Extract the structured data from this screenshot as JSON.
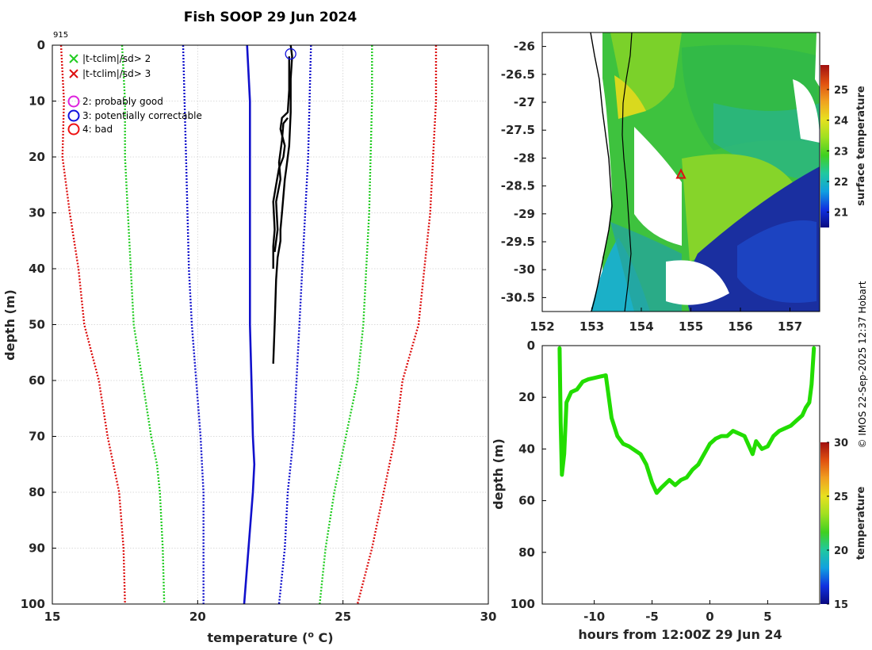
{
  "credit": "© IMOS 22-Sep-2025 12:37 Hobart",
  "colors": {
    "sd2": "#22cc22",
    "sd3": "#dd1111",
    "mean": "#1111cc",
    "good": "#dd22dd",
    "correctable": "#1111dd",
    "bad": "#ee1111",
    "profile": "#000000",
    "track": "#22dd00",
    "marker": "#dd1111"
  },
  "chart_data": [
    {
      "id": "profile",
      "type": "line",
      "title": "Fish SOOP 29 Jun 2024",
      "annotation": "915",
      "xlabel": "temperature (",
      "xlabel_sup": "o",
      "xlabel_end": " C)",
      "ylabel": "depth (m)",
      "xlim": [
        15,
        30
      ],
      "ylim": [
        0,
        100
      ],
      "y_reversed": true,
      "xticks": [
        "15",
        "20",
        "25",
        "30"
      ],
      "yticks": [
        "0",
        "10",
        "20",
        "30",
        "40",
        "50",
        "60",
        "70",
        "80",
        "90",
        "100"
      ],
      "grid": true,
      "legend_position": "top-left",
      "legend": [
        {
          "symbol": "x",
          "color_key": "sd2",
          "label": "|t-tclim|/sd> 2"
        },
        {
          "symbol": "x",
          "color_key": "sd3",
          "label": "|t-tclim|/sd> 3"
        },
        {
          "symbol": "o",
          "color_key": "good",
          "label": "2: probably good"
        },
        {
          "symbol": "o",
          "color_key": "correctable",
          "label": "3: potentially correctable"
        },
        {
          "symbol": "o",
          "color_key": "bad",
          "label": "4: bad"
        }
      ],
      "climatology": {
        "depth": [
          0,
          10,
          20,
          30,
          40,
          50,
          60,
          70,
          75,
          80,
          90,
          100
        ],
        "mean": [
          21.7,
          21.8,
          21.8,
          21.8,
          21.8,
          21.8,
          21.85,
          21.9,
          21.95,
          21.9,
          21.75,
          21.6
        ],
        "sd2_lo": [
          17.4,
          17.5,
          17.5,
          17.6,
          17.7,
          17.8,
          18.1,
          18.4,
          18.6,
          18.7,
          18.8,
          18.85
        ],
        "sd2_hi": [
          26.0,
          26.0,
          25.95,
          25.9,
          25.8,
          25.7,
          25.5,
          25.1,
          24.9,
          24.7,
          24.4,
          24.2
        ],
        "sd3_lo": [
          15.3,
          15.4,
          15.35,
          15.6,
          15.9,
          16.1,
          16.6,
          16.9,
          17.1,
          17.3,
          17.45,
          17.5
        ],
        "sd3_hi": [
          28.2,
          28.2,
          28.1,
          28.0,
          27.8,
          27.6,
          27.05,
          26.8,
          26.6,
          26.4,
          26.0,
          25.5
        ],
        "sd1_lo": [
          19.5,
          19.55,
          19.6,
          19.65,
          19.7,
          19.8,
          19.95,
          20.1,
          20.15,
          20.2,
          20.2,
          20.2
        ],
        "sd1_hi": [
          23.9,
          23.85,
          23.8,
          23.7,
          23.6,
          23.5,
          23.4,
          23.3,
          23.2,
          23.1,
          23.0,
          22.8
        ]
      },
      "profiles": [
        {
          "t": [
            23.2,
            23.25,
            23.2,
            23.2,
            23.15,
            23.05,
            23.0,
            22.95,
            22.9,
            22.85,
            22.85,
            22.75,
            22.7,
            22.65,
            22.6
          ],
          "d": [
            0,
            2,
            6,
            12,
            18,
            22,
            24,
            27,
            30,
            33,
            35,
            38,
            42,
            50,
            57
          ]
        },
        {
          "t": [
            23.15,
            23.15,
            23.1,
            22.9,
            22.85,
            23.0,
            22.95,
            22.8,
            22.7,
            22.6,
            22.65,
            22.6,
            22.6
          ],
          "d": [
            2,
            8,
            12,
            13,
            15,
            18,
            20,
            22,
            25,
            28,
            33,
            36,
            40
          ]
        },
        {
          "t": [
            23.1,
            22.95,
            22.9,
            22.8,
            22.85,
            22.7,
            22.75,
            22.65
          ],
          "d": [
            13,
            14,
            17,
            21,
            24,
            28,
            33,
            37
          ]
        }
      ],
      "flag_marker": {
        "t": 23.2,
        "d": 1,
        "color_key": "correctable"
      }
    },
    {
      "id": "map",
      "type": "heatmap",
      "xlim": [
        152,
        157.6
      ],
      "ylim": [
        -30.75,
        -25.75
      ],
      "xticks": [
        "152",
        "153",
        "154",
        "155",
        "156",
        "157"
      ],
      "yticks": [
        "-26",
        "-26.5",
        "-27",
        "-27.5",
        "-28",
        "-28.5",
        "-29",
        "-29.5",
        "-30",
        "-30.5"
      ],
      "colorbar": {
        "label": "surface temperature",
        "min": 20.5,
        "max": 25.8,
        "ticks": [
          "21",
          "22",
          "23",
          "24",
          "25"
        ]
      },
      "marker": {
        "lon": 154.8,
        "lat": -28.3,
        "symbol": "triangle"
      }
    },
    {
      "id": "track",
      "type": "scatter",
      "xlabel": "hours from 12:00Z 29 Jun 24",
      "ylabel": "depth (m)",
      "xlim": [
        -14.5,
        9.5
      ],
      "ylim": [
        0,
        100
      ],
      "y_reversed": true,
      "xticks": [
        "-10",
        "-5",
        "0",
        "5"
      ],
      "yticks": [
        "0",
        "20",
        "40",
        "60",
        "80",
        "100"
      ],
      "colorbar": {
        "label": "temperature",
        "min": 15,
        "max": 30,
        "ticks": [
          "15",
          "20",
          "25",
          "30"
        ]
      },
      "x": [
        -13.0,
        -12.9,
        -12.8,
        -12.6,
        -12.4,
        -12.0,
        -11.5,
        -11.0,
        -10.5,
        -10.0,
        -9.5,
        -9.0,
        -8.8,
        -8.5,
        -8.0,
        -7.5,
        -7.0,
        -6.0,
        -5.5,
        -5.0,
        -4.6,
        -4.2,
        -3.5,
        -3.0,
        -2.5,
        -2.0,
        -1.5,
        -1.0,
        -0.5,
        0.0,
        0.5,
        1.0,
        1.5,
        2.0,
        2.5,
        3.0,
        3.5,
        3.7,
        4.0,
        4.5,
        5.0,
        5.5,
        6.0,
        6.5,
        7.0,
        7.5,
        8.0,
        8.3,
        8.6,
        8.8,
        9.0
      ],
      "y": [
        1,
        30,
        50,
        42,
        22,
        18,
        17,
        14,
        13,
        12.5,
        12,
        11.5,
        18,
        28,
        35,
        38,
        39,
        42,
        46,
        53,
        57,
        55,
        52,
        54,
        52,
        51,
        48,
        46,
        42,
        38,
        36,
        35,
        35,
        33,
        34,
        35,
        40,
        42,
        37,
        40,
        39,
        35,
        33,
        32,
        31,
        29,
        27,
        24,
        22,
        15,
        1
      ]
    }
  ]
}
